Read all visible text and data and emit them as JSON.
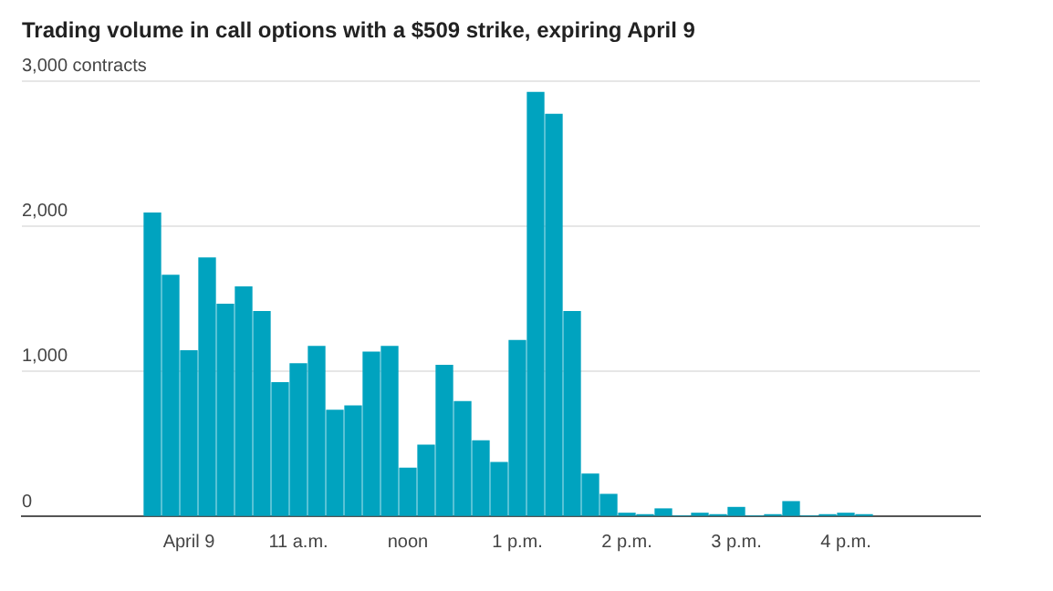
{
  "chart_data": {
    "type": "bar",
    "title": "Trading volume in call options with a $509 strike, expiring April 9",
    "categories": [
      null,
      null,
      "April 9",
      null,
      null,
      null,
      null,
      null,
      "11 a.m.",
      null,
      null,
      null,
      null,
      null,
      "noon",
      null,
      null,
      null,
      null,
      null,
      "1 p.m.",
      null,
      null,
      null,
      null,
      null,
      "2 p.m.",
      null,
      null,
      null,
      null,
      null,
      "3 p.m.",
      null,
      null,
      null,
      null,
      null,
      "4 p.m.",
      null
    ],
    "values": [
      2090,
      1660,
      1140,
      1780,
      1460,
      1580,
      1410,
      920,
      1050,
      1170,
      730,
      760,
      1130,
      1170,
      330,
      490,
      1040,
      790,
      520,
      370,
      1210,
      2920,
      2770,
      1410,
      290,
      150,
      20,
      10,
      50,
      0,
      20,
      10,
      60,
      0,
      10,
      100,
      0,
      10,
      20,
      10
    ],
    "color": "#00a3bf",
    "ylim": [
      0,
      3000
    ],
    "yticks": [
      {
        "value": 0,
        "label": "0"
      },
      {
        "value": 1000,
        "label": "1,000"
      },
      {
        "value": 2000,
        "label": "2,000"
      },
      {
        "value": 3000,
        "label": "3,000 contracts"
      }
    ],
    "grid": "y",
    "legend": false
  }
}
